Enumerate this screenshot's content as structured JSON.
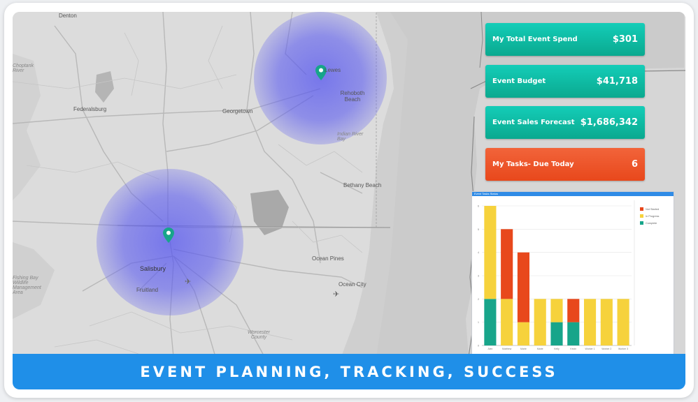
{
  "map": {
    "places": [
      {
        "name": "Denton",
        "cls": "place"
      },
      {
        "name": "Choptank River",
        "cls": "place italic"
      },
      {
        "name": "Federalsburg",
        "cls": "place"
      },
      {
        "name": "Georgetown",
        "cls": "place"
      },
      {
        "name": "Lewes",
        "cls": "place"
      },
      {
        "name": "Rehoboth Beach",
        "cls": "place"
      },
      {
        "name": "Indian River Bay",
        "cls": "place italic"
      },
      {
        "name": "Bethany Beach",
        "cls": "place"
      },
      {
        "name": "Ocean Pines",
        "cls": "place"
      },
      {
        "name": "Ocean City",
        "cls": "place"
      },
      {
        "name": "Salisbury",
        "cls": "place big"
      },
      {
        "name": "Fruitland",
        "cls": "place"
      },
      {
        "name": "Fishing Bay Wildlife Management Area",
        "cls": "place italic"
      },
      {
        "name": "Worcester County",
        "cls": "place italic"
      }
    ]
  },
  "cards": [
    {
      "label": "My Total Event Spend",
      "value": "$301",
      "style": "teal"
    },
    {
      "label": "Event Budget",
      "value": "$41,718",
      "style": "teal"
    },
    {
      "label": "Event Sales Forecast",
      "value": "$1,686,342",
      "style": "teal"
    },
    {
      "label": "My Tasks- Due Today",
      "value": "6",
      "style": "orange"
    }
  ],
  "chart_title": "Event Tasks Status",
  "chart_data": {
    "type": "bar",
    "stacked": true,
    "categories": [
      "Alex",
      "Matthew",
      "Marie",
      "Marie",
      "Kelly",
      "Kevin",
      "Worker 1",
      "Worker 2",
      "Worker 3"
    ],
    "series": [
      {
        "name": "Complete",
        "color": "#17a58a",
        "values": [
          2,
          0,
          0,
          0,
          1,
          1,
          0,
          0,
          0
        ]
      },
      {
        "name": "In Progress",
        "color": "#f6d23c",
        "values": [
          4,
          2,
          1,
          2,
          1,
          0,
          2,
          2,
          2
        ]
      },
      {
        "name": "Not Started",
        "color": "#e8481c",
        "values": [
          0,
          3,
          3,
          0,
          0,
          1,
          0,
          0,
          0
        ]
      }
    ],
    "legend": [
      "Not Started",
      "In Progress",
      "Complete"
    ],
    "yticks": [
      0,
      1,
      2,
      3,
      4,
      5,
      6
    ],
    "ylim": [
      0,
      6
    ],
    "grid": true,
    "legend_position": "top-right"
  },
  "banner": {
    "text": "EVENT PLANNING, TRACKING, SUCCESS"
  }
}
